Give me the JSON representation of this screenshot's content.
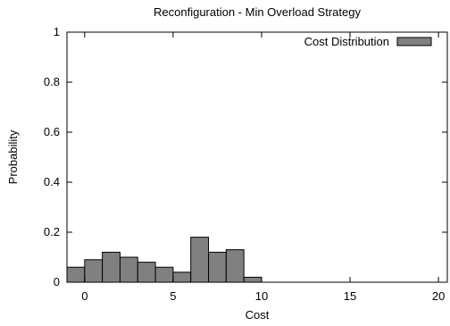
{
  "chart_data": {
    "type": "bar",
    "title": "Reconfiguration - Min Overload Strategy",
    "xlabel": "Cost",
    "ylabel": "Probability",
    "xlim": [
      -1,
      20.5
    ],
    "ylim": [
      0,
      1
    ],
    "xticks": [
      0,
      5,
      10,
      15,
      20
    ],
    "yticks": [
      0,
      0.2,
      0.4,
      0.6,
      0.8,
      1
    ],
    "x": [
      -1,
      0,
      1,
      2,
      3,
      4,
      5,
      6,
      7,
      8,
      9,
      10,
      11,
      12,
      13,
      14,
      15,
      16,
      17,
      18,
      19
    ],
    "bin_width": 1,
    "series": [
      {
        "name": "Cost Distribution",
        "values": [
          0.06,
          0.09,
          0.12,
          0.1,
          0.08,
          0.06,
          0.04,
          0.18,
          0.12,
          0.13,
          0.02,
          0,
          0,
          0,
          0,
          0,
          0,
          0,
          0,
          0,
          0
        ]
      }
    ],
    "grid": false,
    "legend_position": "top-right",
    "bar_color": "#808080",
    "edge_color": "#000000"
  }
}
